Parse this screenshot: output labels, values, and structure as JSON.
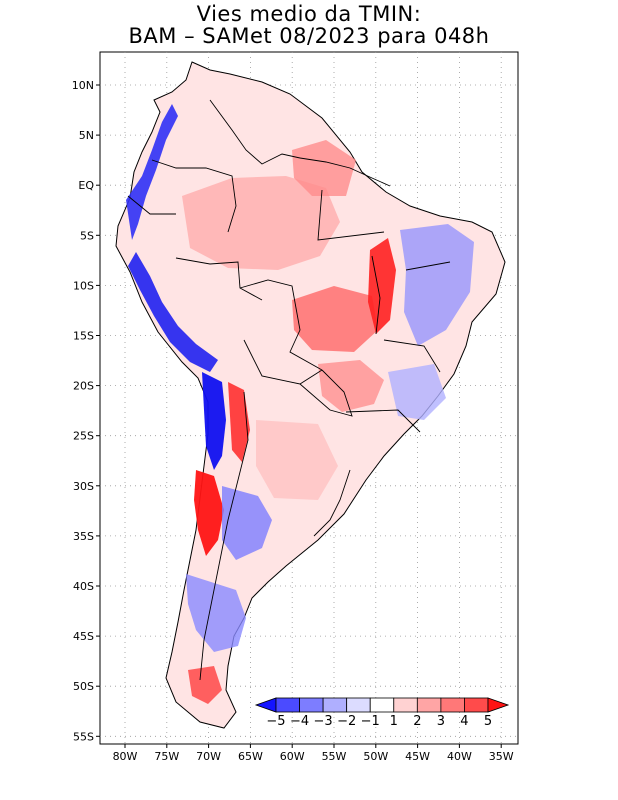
{
  "title": {
    "line1": "Vies medio da TMIN:",
    "line2": "BAM – SAMet 08/2023  para 048h"
  },
  "axes": {
    "lon_labels": [
      "80W",
      "75W",
      "70W",
      "65W",
      "60W",
      "55W",
      "50W",
      "45W",
      "40W",
      "35W"
    ],
    "lat_labels": [
      "10N",
      "5N",
      "EQ",
      "5S",
      "10S",
      "15S",
      "20S",
      "25S",
      "30S",
      "35S",
      "40S",
      "45S",
      "50S",
      "55S"
    ],
    "lon_range": [
      -83,
      -34
    ],
    "lat_range": [
      13,
      -56
    ],
    "grid": "dotted"
  },
  "colorbar": {
    "labels": [
      "−5",
      "−4",
      "−3",
      "−2",
      "−1",
      "1",
      "2",
      "3",
      "4",
      "5"
    ],
    "colors": [
      "#1414ff",
      "#4b4bff",
      "#7d7dff",
      "#afafff",
      "#dcdcff",
      "#ffffff",
      "#ffd2d2",
      "#ffa5a5",
      "#ff7878",
      "#ff4b4b",
      "#ff1414"
    ]
  },
  "field_colors": {
    "strong_negative": "#1010f0",
    "negative": "#7070ff",
    "weak_negative": "#d6d6ff",
    "weak_positive": "#ffdada",
    "positive": "#ff9c9c",
    "strong_positive": "#ff2020"
  }
}
